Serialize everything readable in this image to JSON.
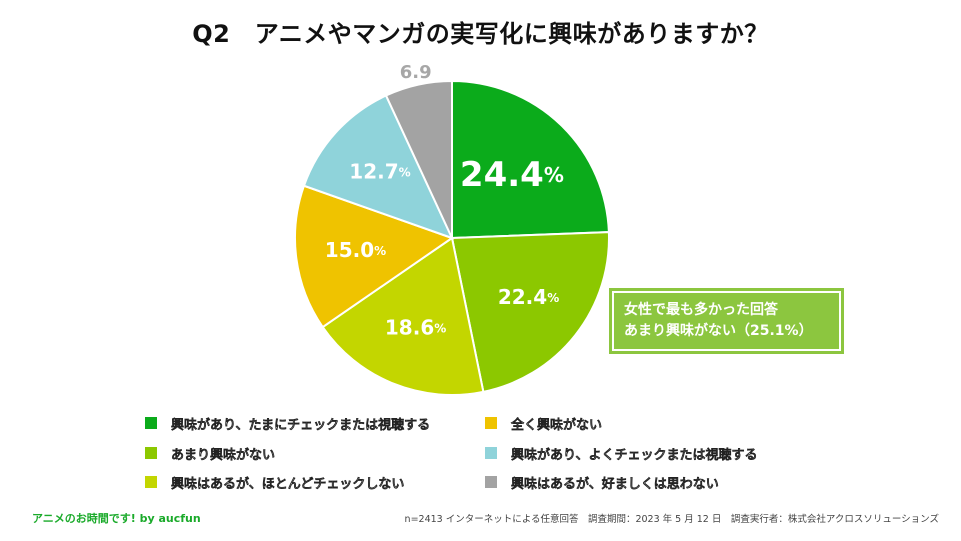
{
  "title": "Q2　アニメやマンガの実写化に興味がありますか？",
  "chart_data": {
    "type": "pie",
    "title": "Q2　アニメやマンガの実写化に興味がありますか？",
    "unit": "%",
    "slices": [
      {
        "label": "興味があり、たまにチェックまたは視聴する",
        "value": 24.4,
        "value_text": "24.4",
        "color": "#0bab1b"
      },
      {
        "label": "あまり興味がない",
        "value": 22.4,
        "value_text": "22.4",
        "color": "#8cc800"
      },
      {
        "label": "興味はあるが、ほとんどチェックしない",
        "value": 18.6,
        "value_text": "18.6",
        "color": "#c3d600"
      },
      {
        "label": "全く興味がない",
        "value": 15.0,
        "value_text": "15.0",
        "color": "#efc300"
      },
      {
        "label": "興味があり、よくチェックまたは視聴する",
        "value": 12.7,
        "value_text": "12.7",
        "color": "#8fd3da"
      },
      {
        "label": "興味はあるが、好ましくは思わない",
        "value": 6.9,
        "value_text": "6.9",
        "color": "#a3a3a3"
      }
    ],
    "legend_position": "bottom"
  },
  "callout": {
    "line1": "女性で最も多かった回答",
    "line2": "あまり興味がない（25.1%）"
  },
  "footer": {
    "brand": "アニメのお時間です! by aucfun",
    "note": "n=2413 インターネットによる任意回答　調査期間：2023 年 5 月 12 日　調査実行者：株式会社アクロスソリューションズ"
  }
}
